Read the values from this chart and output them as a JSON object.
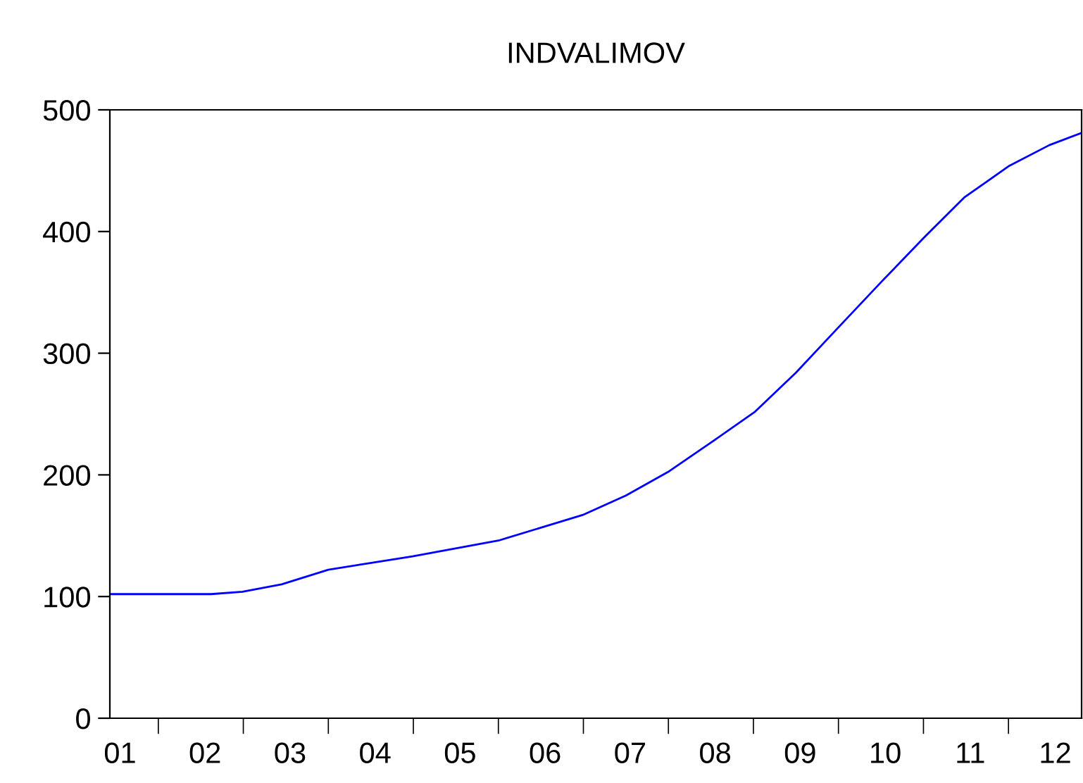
{
  "chart_data": {
    "type": "line",
    "title": "INDVALIMOV",
    "xlim": [
      0.88,
      12.31
    ],
    "xticks": [
      {
        "value": 1,
        "label": "01"
      },
      {
        "value": 2,
        "label": "02"
      },
      {
        "value": 3,
        "label": "03"
      },
      {
        "value": 4,
        "label": "04"
      },
      {
        "value": 5,
        "label": "05"
      },
      {
        "value": 6,
        "label": "06"
      },
      {
        "value": 7,
        "label": "07"
      },
      {
        "value": 8,
        "label": "08"
      },
      {
        "value": 9,
        "label": "09"
      },
      {
        "value": 10,
        "label": "10"
      },
      {
        "value": 11,
        "label": "11"
      },
      {
        "value": 12,
        "label": "12"
      },
      {
        "value": 1.45,
        "label": null
      },
      {
        "value": 2.45,
        "label": null
      },
      {
        "value": 3.45,
        "label": null
      },
      {
        "value": 4.45,
        "label": null
      },
      {
        "value": 5.45,
        "label": null
      },
      {
        "value": 6.45,
        "label": null
      },
      {
        "value": 7.45,
        "label": null
      },
      {
        "value": 8.45,
        "label": null
      },
      {
        "value": 9.45,
        "label": null
      },
      {
        "value": 10.45,
        "label": null
      },
      {
        "value": 11.45,
        "label": null
      }
    ],
    "ylim": [
      0,
      500
    ],
    "yticks": [
      0,
      100,
      200,
      300,
      400,
      500
    ],
    "grid": false,
    "legend": false,
    "line_style": "solid",
    "series": [
      {
        "color": "#0000ff",
        "x": [
          0.88,
          2.07,
          2.44,
          2.9,
          3.45,
          3.89,
          4.44,
          5.45,
          6.44,
          6.95,
          7.46,
          7.94,
          8.47,
          8.95,
          9.46,
          9.96,
          10.47,
          10.93,
          11.46,
          11.93,
          12.31
        ],
        "values": [
          102,
          102,
          104,
          110,
          122,
          127,
          133,
          146,
          167,
          183,
          203,
          226,
          252,
          284,
          322,
          359,
          396,
          428,
          454,
          471,
          481
        ]
      }
    ]
  }
}
